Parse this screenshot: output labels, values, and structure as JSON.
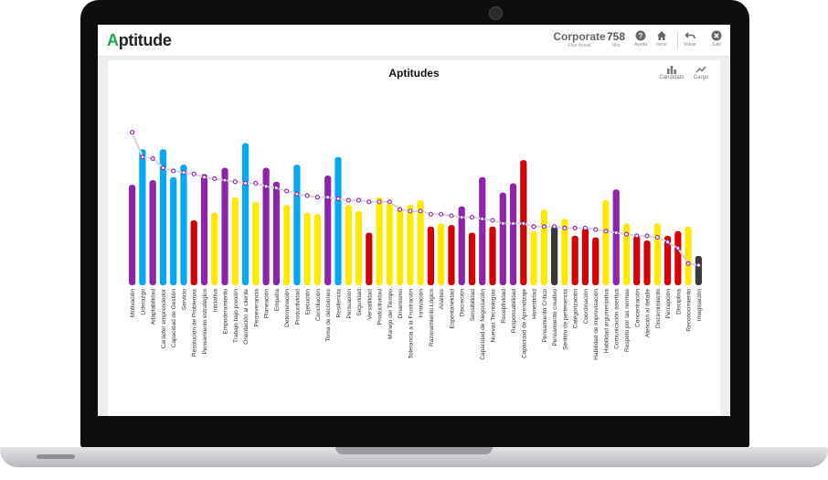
{
  "app": {
    "logo_text": "Aptitude",
    "company": "Corporate",
    "plan": "Plan Actual",
    "hits_value": "758",
    "hits_label": "Hits",
    "buttons": {
      "help": "Ayuda",
      "home": "Inicio",
      "back": "Volver",
      "exit": "Salir"
    }
  },
  "view_toggle": {
    "candidate": "Candidato",
    "position": "Cargo"
  },
  "colors": {
    "purple": "#8e24aa",
    "blue": "#03a9f4",
    "yellow": "#ffea00",
    "red": "#d50000",
    "dark": "#37393a",
    "line": "#d7d7d7",
    "marker": "#8e24aa"
  },
  "chart_data": {
    "type": "bar",
    "title": "Aptitudes",
    "ylim": [
      0,
      100
    ],
    "grid": false,
    "categories": [
      "Motivación",
      "Liderazgo",
      "Adaptabilidad",
      "Carácter emprendedor",
      "Capacidad de Gestión",
      "Servicio",
      "Resolución de Problemas",
      "Pensamiento estratégico",
      "Iniciativa",
      "Empoderamiento",
      "Trabajo bajo presión",
      "Orientación al cliente",
      "Perseverancia",
      "Planeación",
      "Empatía",
      "Determinación",
      "Productividad",
      "Ejecución",
      "Conciliación",
      "Toma de decisiones",
      "Resiliencia",
      "Persuasión",
      "Seguridad",
      "Versatilidad",
      "Productividad",
      "Manejo del Tiempo",
      "Dinamismo",
      "Tolerancia a la Frustración",
      "Innovación",
      "Razonamiento Lógico",
      "Análisis",
      "Espontaneidad",
      "Discreción",
      "Sensibilidad",
      "Capacidad de Negociación",
      "Nuevas Tecnologías",
      "Receptividad",
      "Responsabilidad",
      "Capacidad de Aprendizaje",
      "Honestidad",
      "Pensamiento Crítico",
      "Pensamiento creativo",
      "Sentido de pertenencia",
      "Categorización",
      "Coordinación",
      "Habilidad de improvisación",
      "Habilidad argumentativa",
      "Comunicación asertiva",
      "Respeto por las normas",
      "Concentración",
      "Atención al detalle",
      "Discernimiento",
      "Percepción",
      "Disciplina",
      "Reconocimiento",
      "Imaginación"
    ],
    "series": [
      {
        "values": [
          65,
          88,
          68,
          88,
          70,
          78,
          42,
          72,
          47,
          76,
          57,
          92,
          54,
          76,
          67,
          52,
          78,
          47,
          46,
          71,
          83,
          52,
          48,
          34,
          57,
          53,
          50,
          52,
          55,
          38,
          40,
          39,
          51,
          34,
          70,
          38,
          60,
          66,
          81,
          35,
          49,
          39,
          43,
          32,
          37,
          31,
          55,
          62,
          40,
          32,
          29,
          40,
          32,
          35,
          38,
          19
        ],
        "colors": [
          "purple",
          "blue",
          "purple",
          "blue",
          "blue",
          "blue",
          "red",
          "purple",
          "yellow",
          "purple",
          "yellow",
          "blue",
          "yellow",
          "purple",
          "purple",
          "yellow",
          "blue",
          "yellow",
          "yellow",
          "purple",
          "blue",
          "yellow",
          "yellow",
          "red",
          "yellow",
          "yellow",
          "yellow",
          "yellow",
          "yellow",
          "red",
          "yellow",
          "red",
          "purple",
          "red",
          "purple",
          "red",
          "purple",
          "purple",
          "red",
          "yellow",
          "yellow",
          "dark",
          "yellow",
          "red",
          "red",
          "red",
          "yellow",
          "purple",
          "yellow",
          "red",
          "red",
          "yellow",
          "red",
          "red",
          "yellow",
          "dark"
        ]
      },
      {
        "values": [
          99,
          83,
          82,
          76,
          74,
          73,
          72,
          70,
          69,
          68,
          67,
          66,
          66,
          64,
          63,
          61,
          59,
          58,
          57,
          57,
          56,
          55,
          55,
          54,
          54,
          54,
          49,
          48,
          48,
          46,
          46,
          45,
          44,
          44,
          43,
          42,
          40,
          40,
          40,
          38,
          38,
          38,
          37,
          37,
          37,
          36,
          35,
          34,
          33,
          32,
          32,
          31,
          28,
          24,
          14,
          13
        ],
        "type": "line"
      }
    ]
  }
}
